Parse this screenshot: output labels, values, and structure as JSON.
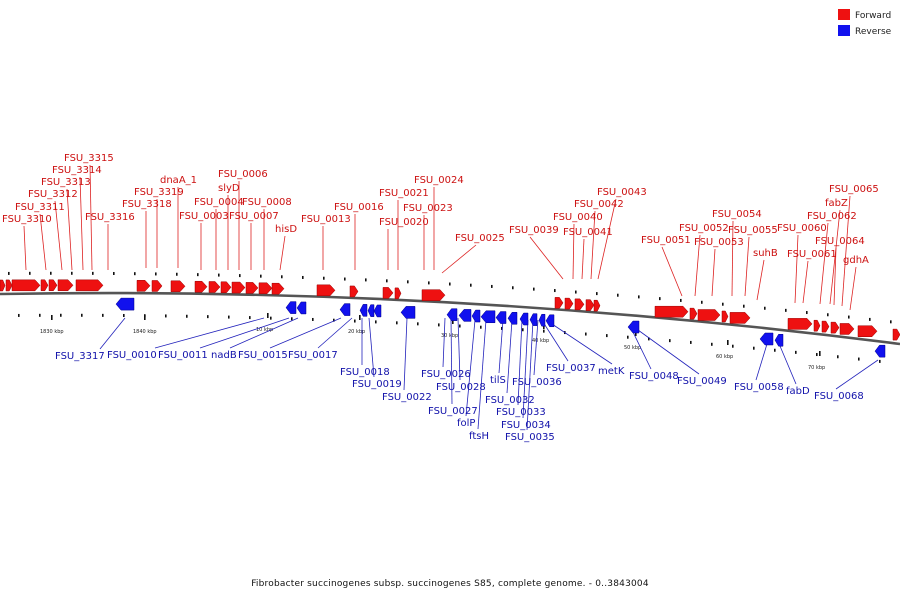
{
  "legend": {
    "forward": {
      "label": "Forward",
      "color": "#ee1111"
    },
    "reverse": {
      "label": "Reverse",
      "color": "#1111ee"
    }
  },
  "caption": "Fibrobacter succinogenes subsp. succinogenes S85, complete genome. - 0..3843004",
  "scale_labels": [
    "1830 kbp",
    "1840 kbp",
    "10 kbp",
    "20 kbp",
    "30 kbp",
    "40 kbp",
    "50 kbp",
    "60 kbp",
    "70 kbp"
  ],
  "forward_labels": [
    "FSU_3310",
    "FSU_3311",
    "FSU_3312",
    "FSU_3313",
    "FSU_3314",
    "FSU_3315",
    "FSU_3316",
    "FSU_3318",
    "FSU_3319",
    "dnaA_1",
    "FSU_0003",
    "FSU_0004",
    "slyD",
    "FSU_0006",
    "FSU_0007",
    "FSU_0008",
    "hisD",
    "FSU_0013",
    "FSU_0016",
    "FSU_0020",
    "FSU_0021",
    "FSU_0023",
    "FSU_0024",
    "FSU_0025",
    "FSU_0039",
    "FSU_0040",
    "FSU_0041",
    "FSU_0042",
    "FSU_0043",
    "FSU_0051",
    "FSU_0052",
    "FSU_0053",
    "FSU_0054",
    "FSU_0055",
    "suhB",
    "FSU_0060",
    "FSU_0061",
    "FSU_0062",
    "fabZ",
    "FSU_0064",
    "FSU_0065",
    "gdhA"
  ],
  "reverse_labels": [
    "FSU_3317",
    "FSU_0010",
    "FSU_0011",
    "nadB",
    "FSU_0015",
    "FSU_0017",
    "FSU_0018",
    "FSU_0019",
    "FSU_0022",
    "FSU_0026",
    "FSU_0027",
    "FSU_0028",
    "folP",
    "ftsH",
    "tilS",
    "FSU_0032",
    "FSU_0033",
    "FSU_0034",
    "FSU_0035",
    "FSU_0036",
    "FSU_0037",
    "metK",
    "FSU_0048",
    "FSU_0049",
    "FSU_0058",
    "fabD",
    "FSU_0068"
  ]
}
